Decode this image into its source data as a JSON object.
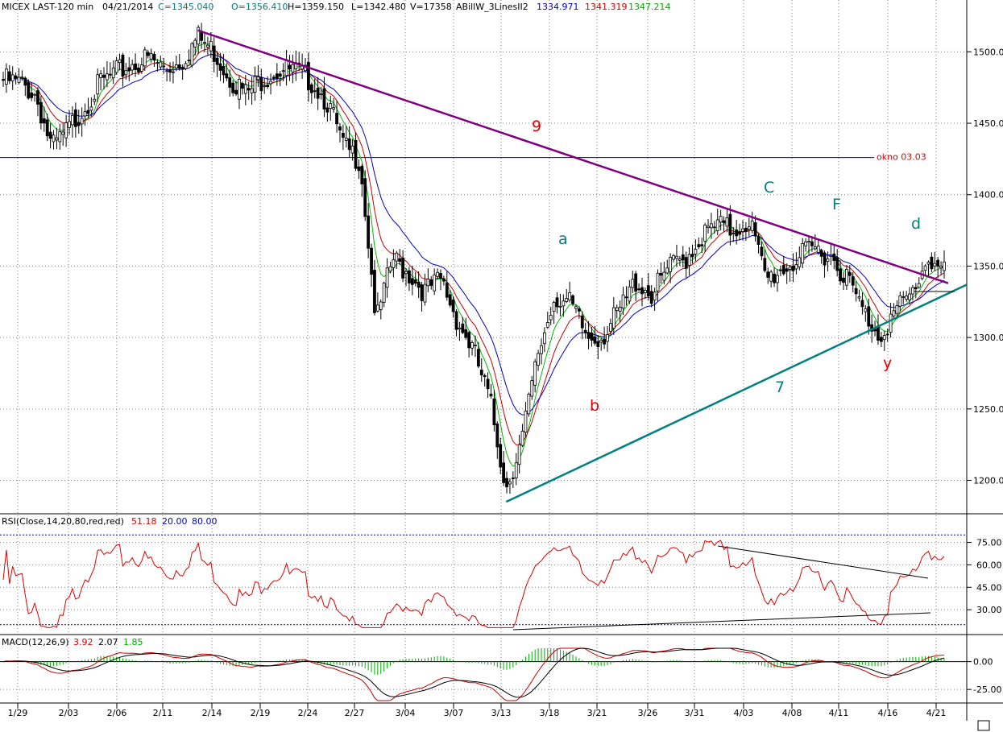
{
  "header": {
    "symbol": "MICEX LAST-120 min",
    "date": "04/21/2014",
    "close": "C=1345.040",
    "open": "O=1356.410",
    "high": "H=1359.150",
    "low": "L=1342.480",
    "volume": "V=17358",
    "indicator": "ABillW_3LinesII2",
    "ma_blue": "1334.971",
    "ma_red": "1341.319",
    "ma_green": "1347.214"
  },
  "rsi_header": {
    "label": "RSI(Close,14,20,80,red,red)",
    "value": "51.18",
    "low": "20.00",
    "high": "80.00"
  },
  "macd_header": {
    "label": "MACD(12,26,9)",
    "macd": "3.92",
    "signal": "2.07",
    "hist": "1.85"
  },
  "annotations": {
    "line9": "9",
    "line7": "7",
    "okno": "okno 03.03",
    "a": "a",
    "b": "b",
    "C": "C",
    "F": "F",
    "d": "d",
    "y": "y"
  },
  "colors": {
    "candle": "#000000",
    "ma_blue": "#0000cc",
    "ma_red": "#cc0000",
    "ma_green": "#00bb00",
    "trend_9": "#800080",
    "trend_7": "#008080",
    "rsi": "#dd0000",
    "macd_hist": "#00aa00",
    "grid": "#808080",
    "level": "#000080"
  },
  "chart_data": [
    {
      "type": "candlestick",
      "title": "MICEX LAST-120 min",
      "x_ticks": [
        "1/29",
        "2/03",
        "2/06",
        "2/11",
        "2/14",
        "2/19",
        "2/24",
        "2/27",
        "3/04",
        "3/07",
        "3/13",
        "3/18",
        "3/21",
        "3/26",
        "3/31",
        "4/03",
        "4/08",
        "4/11",
        "4/16",
        "4/21"
      ],
      "y_ticks": [
        1200,
        1250,
        1300,
        1350,
        1400,
        1450,
        1500
      ],
      "ylim": [
        1180,
        1525
      ],
      "close_path": [
        [
          "1/29",
          1480
        ],
        [
          "1/30",
          1478
        ],
        [
          "1/31",
          1470
        ],
        [
          "2/03",
          1432
        ],
        [
          "2/04",
          1445
        ],
        [
          "2/05",
          1462
        ],
        [
          "2/06",
          1478
        ],
        [
          "2/07",
          1485
        ],
        [
          "2/10",
          1492
        ],
        [
          "2/11",
          1495
        ],
        [
          "2/12",
          1488
        ],
        [
          "2/13",
          1494
        ],
        [
          "2/14",
          1510
        ],
        [
          "2/17",
          1500
        ],
        [
          "2/18",
          1482
        ],
        [
          "2/19",
          1470
        ],
        [
          "2/20",
          1482
        ],
        [
          "2/21",
          1488
        ],
        [
          "2/24",
          1486
        ],
        [
          "2/25",
          1480
        ],
        [
          "2/26",
          1465
        ],
        [
          "2/27",
          1432
        ],
        [
          "2/28",
          1425
        ],
        [
          "3/03",
          1310
        ],
        [
          "3/04",
          1355
        ],
        [
          "3/05",
          1345
        ],
        [
          "3/06",
          1332
        ],
        [
          "3/07",
          1340
        ],
        [
          "3/10",
          1312
        ],
        [
          "3/11",
          1290
        ],
        [
          "3/12",
          1255
        ],
        [
          "3/13",
          1195
        ],
        [
          "3/14",
          1230
        ],
        [
          "3/17",
          1290
        ],
        [
          "3/18",
          1330
        ],
        [
          "3/19",
          1322
        ],
        [
          "3/20",
          1300
        ],
        [
          "3/21",
          1302
        ],
        [
          "3/24",
          1318
        ],
        [
          "3/25",
          1340
        ],
        [
          "3/26",
          1330
        ],
        [
          "3/27",
          1348
        ],
        [
          "3/28",
          1355
        ],
        [
          "3/31",
          1370
        ],
        [
          "4/01",
          1378
        ],
        [
          "4/02",
          1375
        ],
        [
          "4/03",
          1383
        ],
        [
          "4/04",
          1340
        ],
        [
          "4/07",
          1348
        ],
        [
          "4/08",
          1355
        ],
        [
          "4/09",
          1362
        ],
        [
          "4/10",
          1358
        ],
        [
          "4/11",
          1342
        ],
        [
          "4/14",
          1318
        ],
        [
          "4/15",
          1302
        ],
        [
          "4/16",
          1318
        ],
        [
          "4/17",
          1330
        ],
        [
          "4/18",
          1357
        ],
        [
          "4/21",
          1345
        ]
      ],
      "series": [
        {
          "name": "ABillW_3LinesII2 blue",
          "last": 1334.971
        },
        {
          "name": "ABillW_3LinesII2 red",
          "last": 1341.319
        },
        {
          "name": "ABillW_3LinesII2 green",
          "last": 1347.214
        }
      ],
      "horizontal_level": {
        "label": "okno 03.03",
        "value": 1426
      },
      "trendlines": [
        {
          "label": "9",
          "from": [
            "2/14",
            1515
          ],
          "to": [
            "4/21",
            1338
          ]
        },
        {
          "label": "7",
          "from": [
            "3/13",
            1185
          ],
          "to": [
            "4/21",
            1330
          ]
        }
      ],
      "wave_labels": [
        "a",
        "b",
        "C",
        "F",
        "d",
        "y"
      ]
    },
    {
      "type": "line",
      "title": "RSI(Close,14,20,80,red,red)",
      "y_ticks": [
        30,
        45,
        60,
        75
      ],
      "ylim": [
        15,
        85
      ],
      "levels": [
        20,
        80
      ],
      "last": 51.18
    },
    {
      "type": "line",
      "title": "MACD(12,26,9)",
      "y_ticks": [
        -25,
        0
      ],
      "ylim": [
        -35,
        12
      ],
      "macd": 3.92,
      "signal": 2.07,
      "hist": 1.85
    }
  ]
}
